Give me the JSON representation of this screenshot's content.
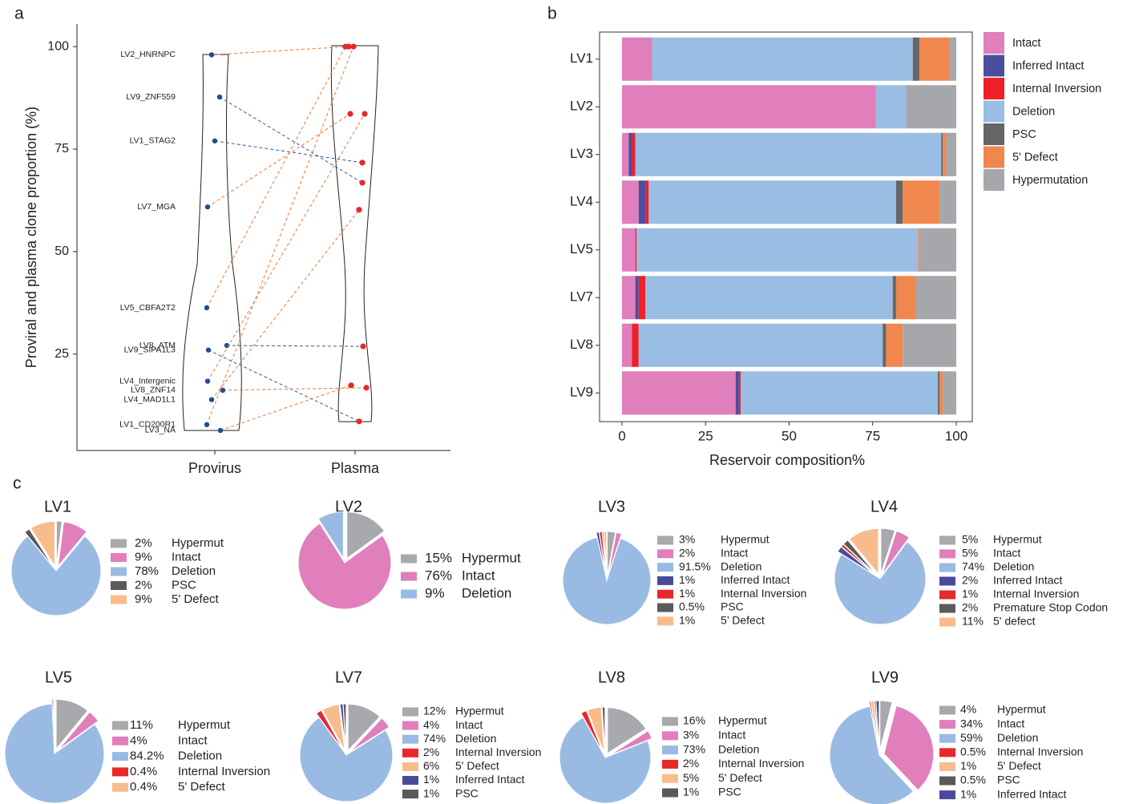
{
  "panel_labels": [
    "a",
    "b",
    "c"
  ],
  "chart_data": [
    {
      "type": "dotplot",
      "ylabel": "Proviral and plasma clone proportion (%)",
      "categories": [
        "Provirus",
        "Plasma"
      ],
      "labels": [
        "LV2_HNRNPC",
        "LV9_ZNF559",
        "LV1_STAG2",
        "LV7_MGA",
        "LV5_CBFA2T2",
        "LV8_ATM",
        "LV9_SIPA1L3",
        "LV4_Intergenic",
        "LV8_ZNF14",
        "LV4_MAD1L1",
        "LV1_CD200R1",
        "LV3_NA"
      ],
      "provirus": [
        98.0,
        87.7,
        77.0,
        60.9,
        36.3,
        27.1,
        26.0,
        18.4,
        16.2,
        13.9,
        7.8,
        6.4
      ],
      "plasma": [
        100,
        66.8,
        71.7,
        83.6,
        100,
        26.9,
        8.6,
        83.6,
        16.8,
        60.2,
        100,
        17.4
      ],
      "ylim": [
        1.5,
        105.5
      ],
      "yticks": [
        25,
        50,
        75,
        100
      ],
      "point_colors": [
        "#1f4e8c",
        "#e8282a"
      ],
      "line_colors": {
        "up": "#f07535",
        "down": "#2b5d9b"
      }
    },
    {
      "type": "stacked_barh",
      "xlabel": "Reservoir composition%",
      "categories": [
        "LV1",
        "LV2",
        "LV3",
        "LV4",
        "LV5",
        "LV7",
        "LV8",
        "LV9"
      ],
      "series": [
        {
          "name": "Intact",
          "color": "#e07fbb",
          "values": [
            9,
            76,
            2,
            5,
            4,
            4,
            3,
            34
          ]
        },
        {
          "name": "Inferred Intact",
          "color": "#4b4d9e",
          "values": [
            0,
            0,
            1,
            2,
            0,
            1,
            0,
            1
          ]
        },
        {
          "name": "Internal Inversion",
          "color": "#ee2028",
          "values": [
            0,
            0,
            1,
            1,
            0.4,
            2,
            2,
            0.5
          ]
        },
        {
          "name": "Deletion",
          "color": "#9abde3",
          "values": [
            78,
            9,
            91.5,
            74,
            84.2,
            74,
            73,
            59
          ]
        },
        {
          "name": "PSC",
          "color": "#666666",
          "values": [
            2,
            0,
            0.5,
            2,
            0,
            1,
            1,
            0.5
          ]
        },
        {
          "name": "5' Defect",
          "color": "#f0874f",
          "values": [
            9,
            0,
            1,
            11,
            0.4,
            6,
            5,
            1
          ]
        },
        {
          "name": "Hypermutation",
          "color": "#a6a7ab",
          "values": [
            2,
            15,
            3,
            5,
            11,
            12,
            16,
            4
          ]
        }
      ],
      "xlim": [
        -6.7,
        104.8
      ],
      "xticks": [
        0,
        25,
        50,
        75,
        100
      ]
    },
    {
      "type": "pie",
      "title": "LV1",
      "labels": [
        "Hypermut",
        "Intact",
        "Deletion",
        "PSC",
        "5' Defect"
      ],
      "values": [
        2,
        9,
        78,
        2,
        9
      ],
      "value_labels": [
        "2%",
        "9%",
        "78%",
        "2%",
        "9%"
      ],
      "colors": [
        "#a7a9ac",
        "#e07fbb",
        "#99bbe3",
        "#5a5a5a",
        "#f8bc8c"
      ]
    },
    {
      "type": "pie",
      "title": "LV2",
      "labels": [
        "Hypermut",
        "Intact",
        "Deletion"
      ],
      "values": [
        15,
        76,
        9
      ],
      "value_labels": [
        "15%",
        "76%",
        "9%"
      ],
      "colors": [
        "#a7a9ac",
        "#e07fbb",
        "#99bbe3"
      ]
    },
    {
      "type": "pie",
      "title": "LV3",
      "labels": [
        "Hypermut",
        "Intact",
        "Deletion",
        "Inferred Intact",
        "Internal Inversion",
        "PSC",
        "5’ Defect"
      ],
      "values": [
        3,
        2,
        91.5,
        1,
        1,
        0.5,
        1
      ],
      "value_labels": [
        "3%",
        "2%",
        "91.5%",
        "1%",
        "1%",
        "0.5%",
        "1%"
      ],
      "colors": [
        "#a7a9ac",
        "#e07fbb",
        "#99bbe3",
        "#4a4a9c",
        "#e8282a",
        "#5a5a5a",
        "#f8bc8c"
      ]
    },
    {
      "type": "pie",
      "title": "LV4",
      "labels": [
        "Hypermut",
        "Intact",
        "Deletion",
        "Inferred Intact",
        "Internal Inversion",
        "Premature Stop Codon",
        "5' defect"
      ],
      "values": [
        5,
        5,
        74,
        2,
        1,
        2,
        11
      ],
      "value_labels": [
        "5%",
        "5%",
        "74%",
        "2%",
        "1%",
        "2%",
        "11%"
      ],
      "colors": [
        "#a7a9ac",
        "#e07fbb",
        "#99bbe3",
        "#4a4a9c",
        "#e8282a",
        "#5a5a5a",
        "#f8bc8c"
      ]
    },
    {
      "type": "pie",
      "title": "LV5",
      "labels": [
        "Hypermut",
        "Intact",
        "Deletion",
        "Internal Inversion",
        "5' Defect"
      ],
      "values": [
        11,
        4,
        84.2,
        0.4,
        0.4
      ],
      "value_labels": [
        "11%",
        "4%",
        "84.2%",
        "0.4%",
        "0.4%"
      ],
      "colors": [
        "#a7a9ac",
        "#e07fbb",
        "#99bbe3",
        "#e8282a",
        "#f8bc8c"
      ]
    },
    {
      "type": "pie",
      "title": "LV7",
      "labels": [
        "Hypermut",
        "Intact",
        "Deletion",
        "Internal Inversion",
        "5' Defect",
        "Inferred Intact",
        "PSC"
      ],
      "values": [
        12,
        4,
        74,
        2,
        6,
        1,
        1
      ],
      "value_labels": [
        "12%",
        "4%",
        "74%",
        "2%",
        "6%",
        "1%",
        "1%"
      ],
      "colors": [
        "#a7a9ac",
        "#e07fbb",
        "#99bbe3",
        "#e8282a",
        "#f8bc8c",
        "#4a4a9c",
        "#5a5a5a"
      ]
    },
    {
      "type": "pie",
      "title": "LV8",
      "labels": [
        "Hypermut",
        "Intact",
        "Deletion",
        "Internal Inversion",
        "5' Defect",
        "PSC"
      ],
      "values": [
        16,
        3,
        73,
        2,
        5,
        1
      ],
      "value_labels": [
        "16%",
        "3%",
        "73%",
        "2%",
        "5%",
        "1%"
      ],
      "colors": [
        "#a7a9ac",
        "#e07fbb",
        "#99bbe3",
        "#e8282a",
        "#f8bc8c",
        "#5a5a5a"
      ]
    },
    {
      "type": "pie",
      "title": "LV9",
      "labels": [
        "Hypermut",
        "Intact",
        "Deletion",
        "Internal Inversion",
        "5' Defect",
        "PSC",
        "Inferred Intact"
      ],
      "values": [
        4,
        34,
        59,
        0.5,
        1,
        0.5,
        1
      ],
      "value_labels": [
        "4%",
        "34%",
        "59%",
        "0.5%",
        "1%",
        "0.5%",
        "1%"
      ],
      "colors": [
        "#a7a9ac",
        "#e07fbb",
        "#99bbe3",
        "#e8282a",
        "#f8bc8c",
        "#5a5a5a",
        "#4a4a9c"
      ]
    }
  ]
}
